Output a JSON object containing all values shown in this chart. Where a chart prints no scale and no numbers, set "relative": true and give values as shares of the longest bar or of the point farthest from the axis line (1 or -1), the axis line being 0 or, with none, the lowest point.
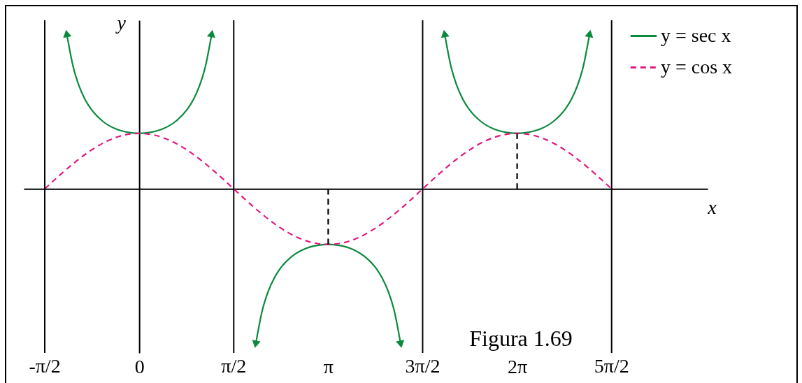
{
  "chart_data": {
    "type": "line",
    "relative": true,
    "xlabel": "x",
    "ylabel": "y",
    "xlim": [
      -1.92,
      9.45
    ],
    "xticks": [
      0,
      {
        "value": 3.142,
        "label": "π"
      },
      {
        "value": 6.283,
        "label": "2π"
      }
    ],
    "tick_labels": "x",
    "legend": "top right",
    "ref_lines": [
      {
        "axis": "x",
        "value": -1.571,
        "label": "-π/2",
        "color": "#000000"
      },
      {
        "axis": "x",
        "value": 1.571,
        "label": "π/2",
        "color": "#000000"
      },
      {
        "axis": "x",
        "value": 4.712,
        "label": "3π/2",
        "color": "#000000"
      },
      {
        "axis": "x",
        "value": 7.854,
        "label": "5π/2",
        "color": "#000000"
      }
    ],
    "series": [
      {
        "name": "y = sec x",
        "color": "#0b8a3e",
        "line_style": "solid",
        "x": [
          -1.2,
          -1.1,
          -1.0,
          -0.9,
          -0.8,
          -0.6,
          -0.4,
          -0.2,
          0,
          0.2,
          0.4,
          0.6,
          0.8,
          0.9,
          1.0,
          1.1,
          1.2,
          1.571,
          1.942,
          2.042,
          2.142,
          2.242,
          2.342,
          2.542,
          2.742,
          2.942,
          3.142,
          3.342,
          3.542,
          3.742,
          3.942,
          4.042,
          4.142,
          4.242,
          4.342,
          4.712,
          5.083,
          5.183,
          5.283,
          5.383,
          5.483,
          5.683,
          5.883,
          6.083,
          6.283,
          6.483,
          6.683,
          6.883,
          7.083,
          7.183,
          7.283,
          7.383,
          7.483
        ],
        "values": [
          1,
          0.799,
          0.671,
          0.583,
          0.52,
          0.439,
          0.393,
          0.37,
          0.362,
          0.37,
          0.393,
          0.439,
          0.52,
          0.583,
          0.671,
          0.799,
          1,
          null,
          -1,
          -0.799,
          -0.671,
          -0.583,
          -0.52,
          -0.439,
          -0.393,
          -0.37,
          -0.362,
          -0.37,
          -0.393,
          -0.439,
          -0.52,
          -0.583,
          -0.671,
          -0.799,
          -1,
          null,
          1,
          0.799,
          0.671,
          0.583,
          0.52,
          0.439,
          0.393,
          0.37,
          0.362,
          0.37,
          0.393,
          0.439,
          0.52,
          0.583,
          0.671,
          0.799,
          1
        ]
      },
      {
        "name": "y = cos x",
        "color": "#e2187f",
        "line_style": "dashed",
        "x": [
          -1.571,
          -1.309,
          -1.047,
          -0.785,
          -0.524,
          -0.262,
          0,
          0.262,
          0.524,
          0.785,
          1.047,
          1.309,
          1.571,
          1.833,
          2.094,
          2.356,
          2.618,
          2.88,
          3.142,
          3.403,
          3.665,
          3.927,
          4.189,
          4.451,
          4.712,
          4.974,
          5.236,
          5.498,
          5.76,
          6.021,
          6.283,
          6.545,
          6.807,
          7.069,
          7.33,
          7.592,
          7.854
        ],
        "values": [
          0,
          0.094,
          0.181,
          0.256,
          0.314,
          0.35,
          0.362,
          0.35,
          0.314,
          0.256,
          0.181,
          0.094,
          0,
          -0.094,
          -0.181,
          -0.256,
          -0.314,
          -0.35,
          -0.362,
          -0.35,
          -0.314,
          -0.256,
          -0.181,
          -0.094,
          0,
          0.094,
          0.181,
          0.256,
          0.314,
          0.35,
          0.362,
          0.35,
          0.314,
          0.256,
          0.181,
          0.094,
          0
        ]
      },
      {
        "color": "#000000",
        "line_style": "dashed",
        "x": [
          3.142,
          3.142
        ],
        "values": [
          0,
          -0.362
        ]
      },
      {
        "color": "#000000",
        "line_style": "dashed",
        "x": [
          6.283,
          6.283
        ],
        "values": [
          0,
          0.362
        ]
      }
    ],
    "annotations": [
      "Figura 1.69"
    ]
  }
}
